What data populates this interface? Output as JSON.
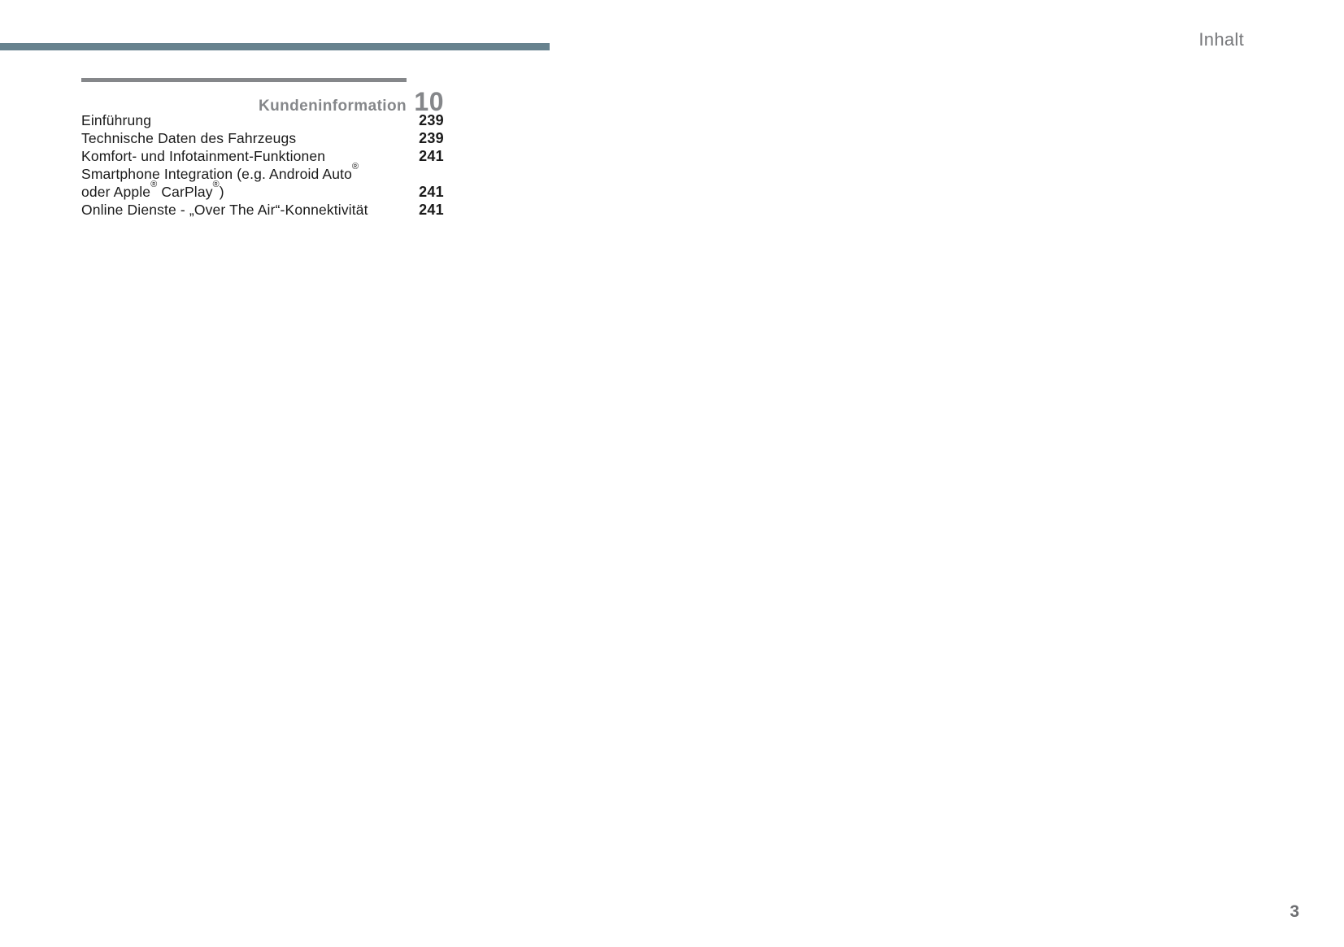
{
  "header": {
    "label": "Inhalt"
  },
  "toc": {
    "chapter_title": "Kundeninformation",
    "chapter_number": "10",
    "entries": [
      {
        "lines": [
          "Einführung"
        ],
        "page": "239"
      },
      {
        "lines": [
          "Technische Daten des Fahrzeugs"
        ],
        "page": "239"
      },
      {
        "lines": [
          "Komfort- und Infotainment-Funktionen"
        ],
        "page": "241"
      },
      {
        "lines": [
          "Smartphone Integration (e.g. Android Auto®",
          "oder Apple® CarPlay®)"
        ],
        "page": "241"
      },
      {
        "lines": [
          "Online Dienste - „Over The Air“-Konnektivität"
        ],
        "page": "241"
      }
    ]
  },
  "footer": {
    "page_number": "3"
  },
  "colors": {
    "accent_bar": "#67828E",
    "heading_gray": "#85878A",
    "muted_text": "#76777A",
    "body_text": "#1A1A1A"
  }
}
